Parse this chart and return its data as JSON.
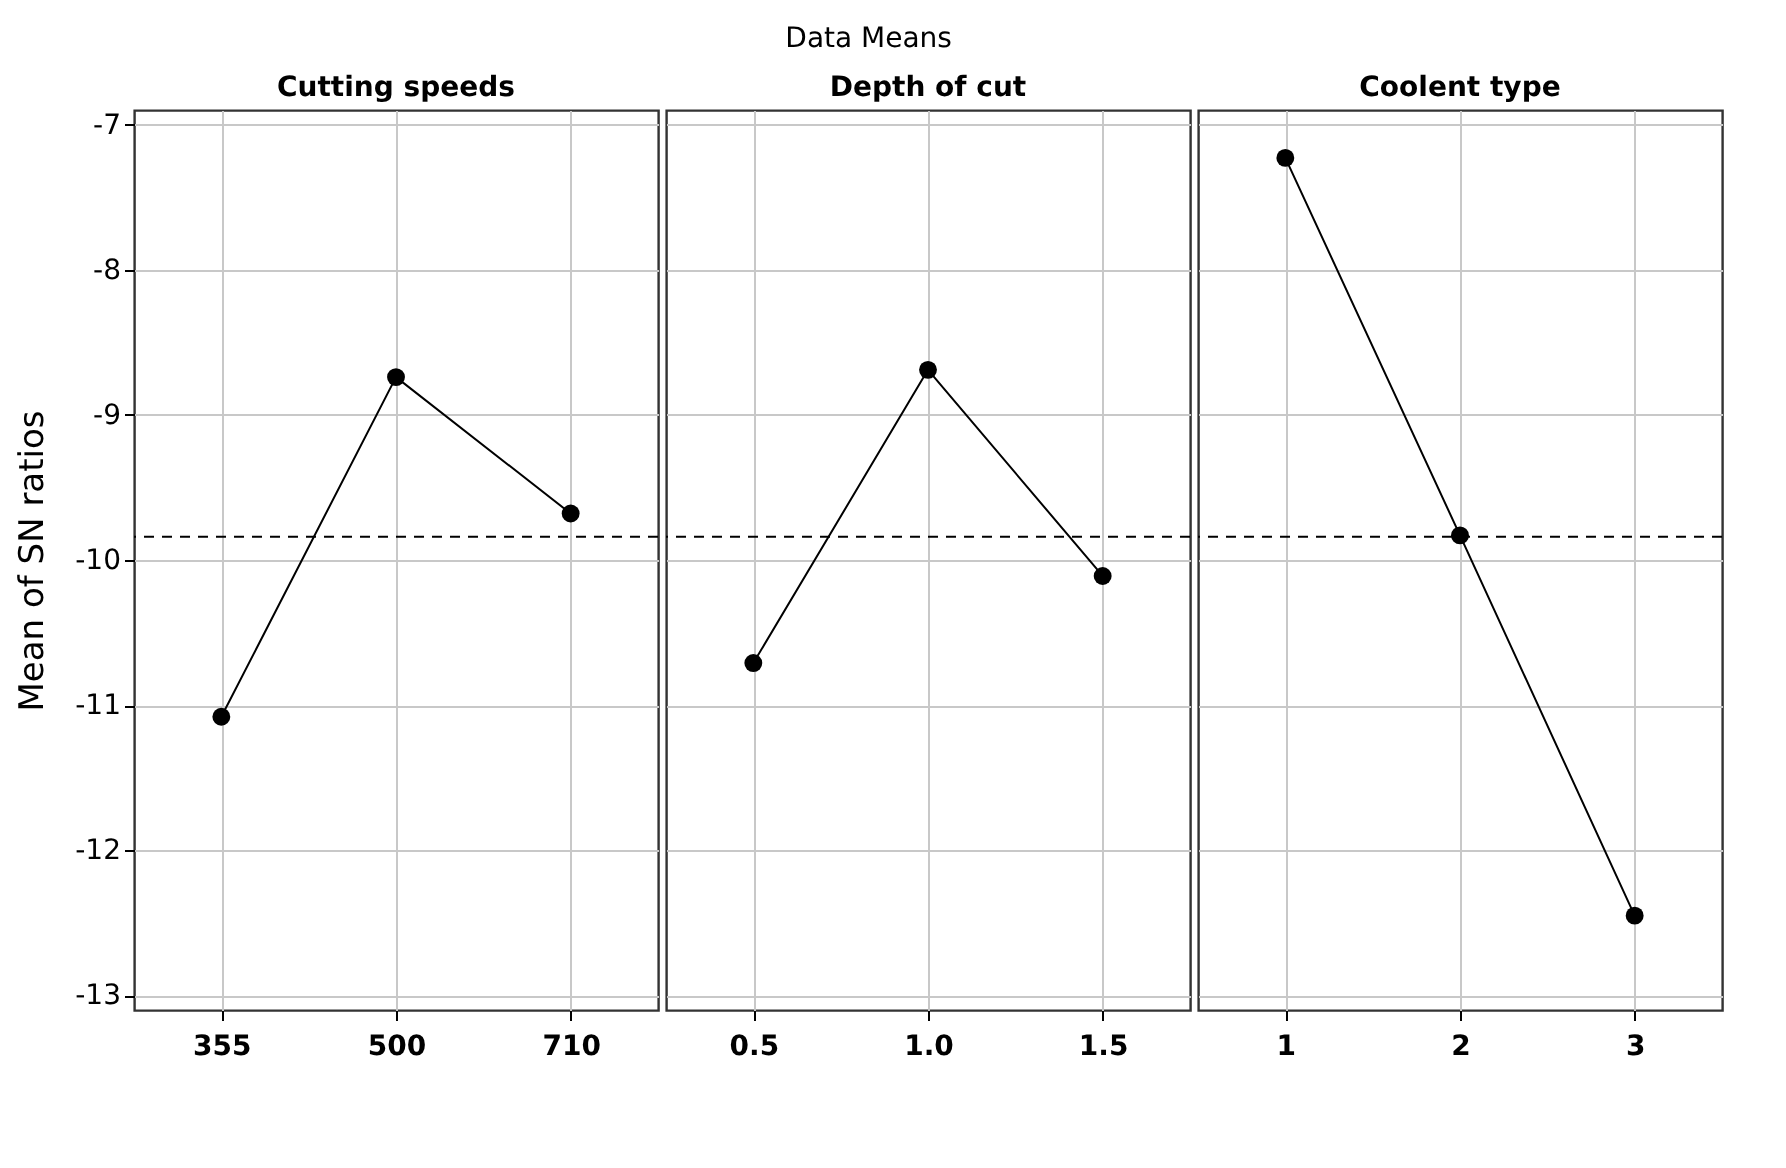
{
  "chart_data": [
    {
      "type": "line",
      "title": "Cutting speeds",
      "ylabel": "Mean of SN ratios",
      "annotations": [
        "Data Means"
      ],
      "categories": [
        "355",
        "500",
        "710"
      ],
      "series": [
        {
          "color": "#000000",
          "values": [
            -11.08,
            -8.74,
            -9.68
          ]
        }
      ],
      "ylim": [
        -13.1,
        -6.9
      ],
      "yticks": [
        -13,
        -12,
        -11,
        -10,
        -9,
        -8,
        -7
      ],
      "grid": true,
      "marker": "circle",
      "line_style": "solid",
      "ref_lines": [
        {
          "axis": "y",
          "value": -9.84,
          "line_style": "dashed",
          "color": "#000000"
        }
      ]
    },
    {
      "type": "line",
      "title": "Depth of cut",
      "categories": [
        "0.5",
        "1.0",
        "1.5"
      ],
      "series": [
        {
          "color": "#000000",
          "values": [
            -10.71,
            -8.69,
            -10.11
          ]
        }
      ],
      "ylim": [
        -13.1,
        -6.9
      ],
      "yticks": [
        -13,
        -12,
        -11,
        -10,
        -9,
        -8,
        -7
      ],
      "grid": true,
      "marker": "circle",
      "line_style": "solid",
      "tick_labels": "x",
      "ref_lines": [
        {
          "axis": "y",
          "value": -9.84,
          "line_style": "dashed",
          "color": "#000000"
        }
      ]
    },
    {
      "type": "line",
      "title": "Coolent type",
      "categories": [
        "1",
        "2",
        "3"
      ],
      "series": [
        {
          "color": "#000000",
          "values": [
            -7.23,
            -9.83,
            -12.45
          ]
        }
      ],
      "ylim": [
        -13.1,
        -6.9
      ],
      "yticks": [
        -13,
        -12,
        -11,
        -10,
        -9,
        -8,
        -7
      ],
      "grid": true,
      "marker": "circle",
      "line_style": "solid",
      "tick_labels": "x",
      "ref_lines": [
        {
          "axis": "y",
          "value": -9.84,
          "line_style": "dashed",
          "color": "#000000"
        }
      ]
    }
  ]
}
